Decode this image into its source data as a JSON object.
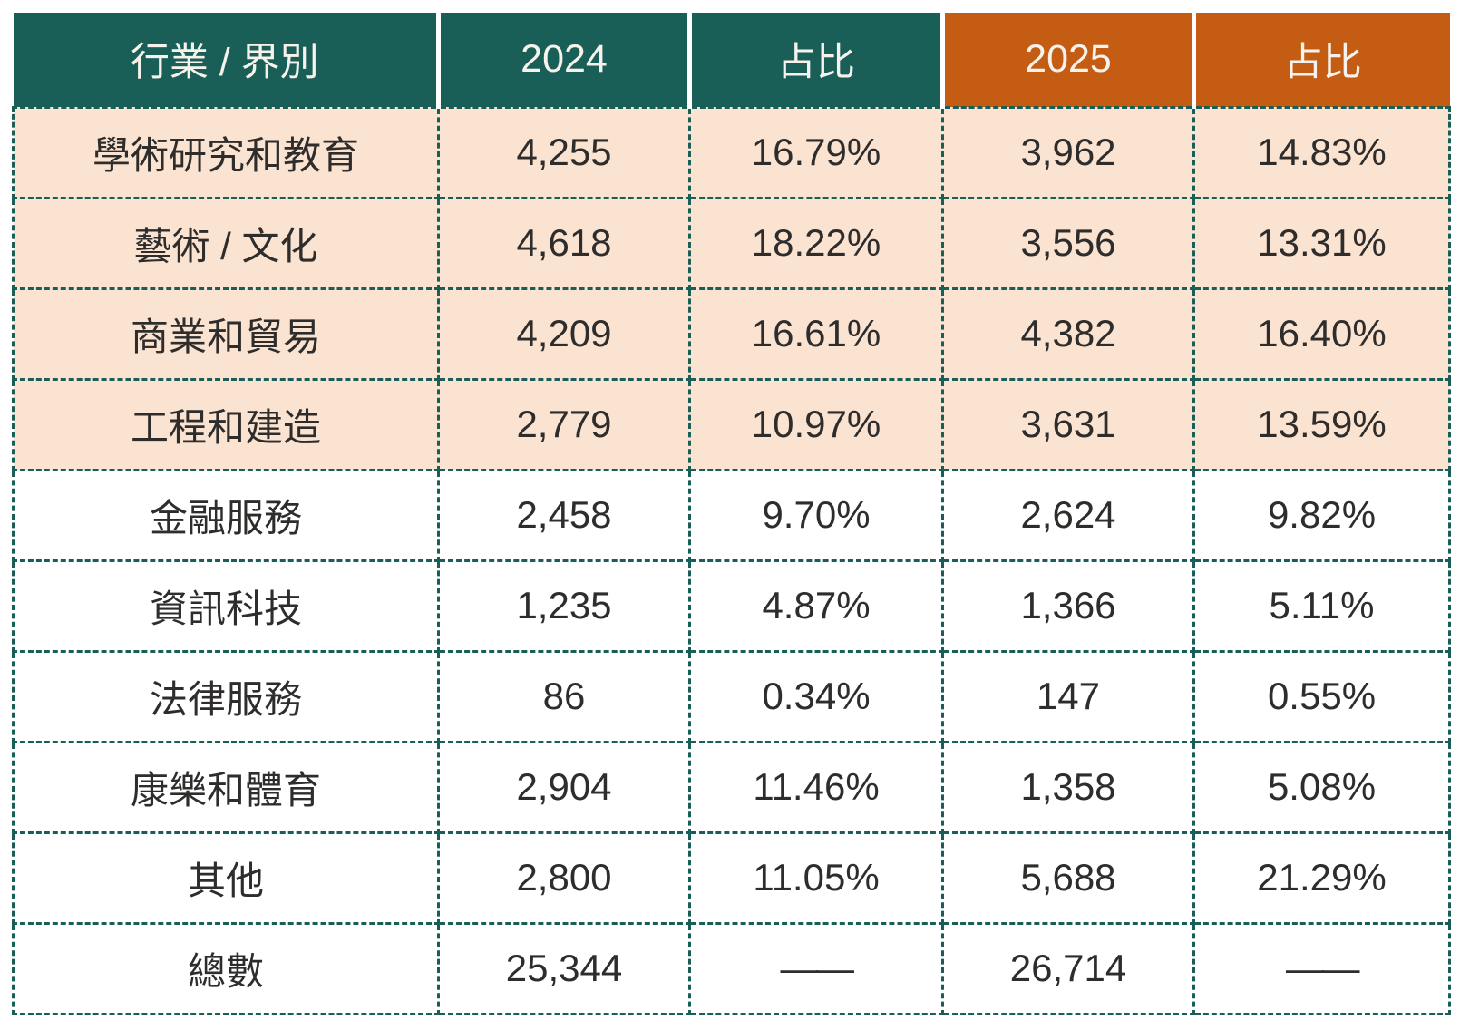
{
  "colors": {
    "teal": "#1A5F57",
    "orange": "#C45D13",
    "peach": "#FBE3D2",
    "border": "#1A5F57",
    "text": "#2E2D2C",
    "header_text": "#F7F3EC"
  },
  "table": {
    "columns": [
      {
        "label": "行業 / 界別",
        "theme": "teal"
      },
      {
        "label": "2024",
        "theme": "teal"
      },
      {
        "label": "占比",
        "theme": "teal"
      },
      {
        "label": "2025",
        "theme": "orange"
      },
      {
        "label": "占比",
        "theme": "orange"
      }
    ],
    "dash": "——",
    "rows": [
      {
        "cells": [
          "學術研究和教育",
          "4,255",
          "16.79%",
          "3,962",
          "14.83%"
        ],
        "highlight": true,
        "is_total": false
      },
      {
        "cells": [
          "藝術 / 文化",
          "4,618",
          "18.22%",
          "3,556",
          "13.31%"
        ],
        "highlight": true,
        "is_total": false
      },
      {
        "cells": [
          "商業和貿易",
          "4,209",
          "16.61%",
          "4,382",
          "16.40%"
        ],
        "highlight": true,
        "is_total": false
      },
      {
        "cells": [
          "工程和建造",
          "2,779",
          "10.97%",
          "3,631",
          "13.59%"
        ],
        "highlight": true,
        "is_total": false
      },
      {
        "cells": [
          "金融服務",
          "2,458",
          "9.70%",
          "2,624",
          "9.82%"
        ],
        "highlight": false,
        "is_total": false
      },
      {
        "cells": [
          "資訊科技",
          "1,235",
          "4.87%",
          "1,366",
          "5.11%"
        ],
        "highlight": false,
        "is_total": false
      },
      {
        "cells": [
          "法律服務",
          "86",
          "0.34%",
          "147",
          "0.55%"
        ],
        "highlight": false,
        "is_total": false
      },
      {
        "cells": [
          "康樂和體育",
          "2,904",
          "11.46%",
          "1,358",
          "5.08%"
        ],
        "highlight": false,
        "is_total": false
      },
      {
        "cells": [
          "其他",
          "2,800",
          "11.05%",
          "5,688",
          "21.29%"
        ],
        "highlight": false,
        "is_total": false
      },
      {
        "cells": [
          "總數",
          "25,344",
          "——",
          "26,714",
          "——"
        ],
        "highlight": false,
        "is_total": true
      }
    ]
  },
  "chart_data": {
    "type": "table",
    "title": "",
    "columns": [
      "行業 / 界別",
      "2024",
      "占比",
      "2025",
      "占比"
    ],
    "rows": [
      [
        "學術研究和教育",
        "4,255",
        "16.79%",
        "3,962",
        "14.83%"
      ],
      [
        "藝術 / 文化",
        "4,618",
        "18.22%",
        "3,556",
        "13.31%"
      ],
      [
        "商業和貿易",
        "4,209",
        "16.61%",
        "4,382",
        "16.40%"
      ],
      [
        "工程和建造",
        "2,779",
        "10.97%",
        "3,631",
        "13.59%"
      ],
      [
        "金融服務",
        "2,458",
        "9.70%",
        "2,624",
        "9.82%"
      ],
      [
        "資訊科技",
        "1,235",
        "4.87%",
        "1,366",
        "5.11%"
      ],
      [
        "法律服務",
        "86",
        "0.34%",
        "147",
        "0.55%"
      ],
      [
        "康樂和體育",
        "2,904",
        "11.46%",
        "1,358",
        "5.08%"
      ],
      [
        "其他",
        "2,800",
        "11.05%",
        "5,688",
        "21.29%"
      ],
      [
        "總數",
        "25,344",
        "——",
        "26,714",
        "——"
      ]
    ],
    "series": [
      {
        "name": "2024",
        "values": [
          4255,
          4618,
          4209,
          2779,
          2458,
          1235,
          86,
          2904,
          2800
        ]
      },
      {
        "name": "2024_占比_pct",
        "values": [
          16.79,
          18.22,
          16.61,
          10.97,
          9.7,
          4.87,
          0.34,
          11.46,
          11.05
        ]
      },
      {
        "name": "2025",
        "values": [
          3962,
          3556,
          4382,
          3631,
          2624,
          1366,
          147,
          1358,
          5688
        ]
      },
      {
        "name": "2025_占比_pct",
        "values": [
          14.83,
          13.31,
          16.4,
          13.59,
          9.82,
          5.11,
          0.55,
          5.08,
          21.29
        ]
      }
    ],
    "categories": [
      "學術研究和教育",
      "藝術 / 文化",
      "商業和貿易",
      "工程和建造",
      "金融服務",
      "資訊科技",
      "法律服務",
      "康樂和體育",
      "其他"
    ],
    "totals": {
      "2024": 25344,
      "2025": 26714
    },
    "layout_hints": {
      "highlighted_rows": [
        "學術研究和教育",
        "藝術 / 文化",
        "商業和貿易",
        "工程和建造"
      ],
      "header_theme": "first 3 columns teal, last 2 columns orange",
      "cell_borders": "dashed teal"
    }
  }
}
